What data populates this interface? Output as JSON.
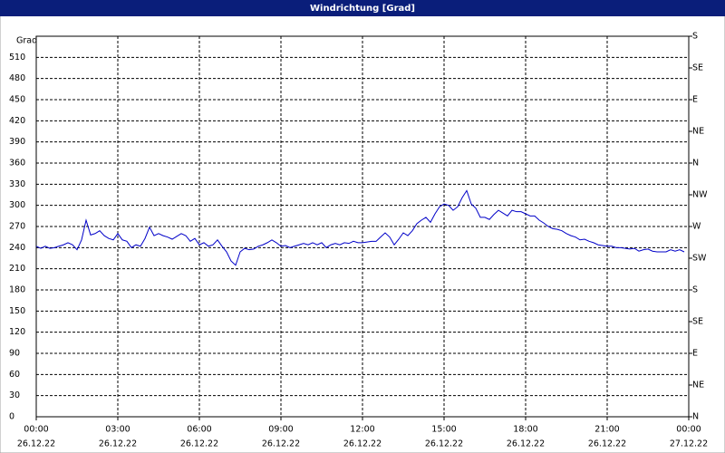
{
  "chart_data": {
    "type": "line",
    "title": "Windrichtung [Grad]",
    "ylabel": "Grad",
    "x": [
      0,
      10,
      20,
      30,
      40,
      50,
      60,
      70,
      80,
      90,
      100,
      110,
      120,
      130,
      140,
      150,
      160,
      170,
      180,
      190,
      200,
      210,
      220,
      230,
      240,
      250,
      260,
      270,
      280,
      290,
      300,
      310,
      320,
      330,
      340,
      350,
      360,
      370,
      380,
      390,
      400,
      410,
      420,
      430,
      440,
      450,
      460,
      470,
      480,
      490,
      500,
      510,
      520,
      530,
      540,
      550,
      560,
      570,
      580,
      590,
      600,
      610,
      620,
      630,
      640,
      650,
      660,
      670,
      680,
      690,
      700,
      710,
      720,
      730,
      740,
      750,
      760,
      770,
      780,
      790,
      800,
      810,
      820,
      830,
      840,
      850,
      860,
      870,
      880,
      890,
      900,
      910,
      920,
      930,
      940,
      950,
      960,
      970,
      980,
      990,
      1000,
      1010,
      1020,
      1030,
      1040,
      1050,
      1060,
      1070,
      1080,
      1090,
      1100,
      1110,
      1120,
      1130,
      1140,
      1150,
      1160,
      1170,
      1180,
      1190,
      1200,
      1210,
      1220,
      1230,
      1240,
      1250,
      1260,
      1270,
      1280,
      1290,
      1300,
      1310,
      1320,
      1330,
      1340,
      1350,
      1360,
      1370,
      1380,
      1390,
      1400,
      1410,
      1420,
      1430
    ],
    "series": [
      {
        "color": "#0000c8",
        "values": [
          242,
          239,
          242,
          239,
          240,
          242,
          244,
          247,
          244,
          237,
          251,
          279,
          258,
          260,
          264,
          257,
          253,
          251,
          260,
          251,
          249,
          240,
          244,
          242,
          253,
          269,
          257,
          260,
          257,
          255,
          252,
          256,
          260,
          257,
          249,
          253,
          244,
          247,
          242,
          244,
          251,
          242,
          234,
          221,
          215,
          234,
          239,
          237,
          238,
          242,
          244,
          247,
          251,
          247,
          242,
          243,
          240,
          242,
          244,
          246,
          244,
          247,
          244,
          247,
          240,
          244,
          246,
          244,
          247,
          246,
          249,
          247,
          247,
          248,
          249,
          249,
          255,
          261,
          255,
          244,
          252,
          261,
          257,
          264,
          274,
          279,
          283,
          276,
          288,
          298,
          302,
          300,
          293,
          298,
          311,
          321,
          302,
          296,
          283,
          283,
          280,
          287,
          293,
          289,
          285,
          293,
          291,
          291,
          288,
          285,
          285,
          279,
          275,
          270,
          267,
          266,
          264,
          260,
          257,
          255,
          251,
          252,
          249,
          247,
          244,
          243,
          242,
          242,
          240,
          240,
          239,
          238,
          239,
          235,
          237,
          238,
          235,
          234,
          234,
          234,
          237,
          235,
          237,
          234
        ]
      }
    ],
    "xlim": [
      0,
      1440
    ],
    "xticks": [
      {
        "value": 0,
        "label": "00:00"
      },
      {
        "value": 180,
        "label": "03:00"
      },
      {
        "value": 360,
        "label": "06:00"
      },
      {
        "value": 540,
        "label": "09:00"
      },
      {
        "value": 720,
        "label": "12:00"
      },
      {
        "value": 900,
        "label": "15:00"
      },
      {
        "value": 1080,
        "label": "18:00"
      },
      {
        "value": 1260,
        "label": "21:00"
      },
      {
        "value": 1440,
        "label": "00:00"
      }
    ],
    "xtick_dates": [
      "26.12.22",
      "26.12.22",
      "26.12.22",
      "26.12.22",
      "26.12.22",
      "26.12.22",
      "26.12.22",
      "26.12.22",
      "27.12.22"
    ],
    "ylim": [
      0,
      540
    ],
    "yticks": [
      0,
      30,
      60,
      90,
      120,
      150,
      180,
      210,
      240,
      270,
      300,
      330,
      360,
      390,
      420,
      450,
      480,
      510
    ],
    "y2lim": [
      0,
      540
    ],
    "y2ticks": [
      {
        "value": 0,
        "label": "N"
      },
      {
        "value": 45,
        "label": "NE"
      },
      {
        "value": 90,
        "label": "E"
      },
      {
        "value": 135,
        "label": "SE"
      },
      {
        "value": 180,
        "label": "S"
      },
      {
        "value": 225,
        "label": "SW"
      },
      {
        "value": 270,
        "label": "W"
      },
      {
        "value": 315,
        "label": "NW"
      },
      {
        "value": 360,
        "label": "N"
      },
      {
        "value": 405,
        "label": "NE"
      },
      {
        "value": 450,
        "label": "E"
      },
      {
        "value": 495,
        "label": "SE"
      },
      {
        "value": 540,
        "label": "S"
      }
    ],
    "grid": true
  }
}
